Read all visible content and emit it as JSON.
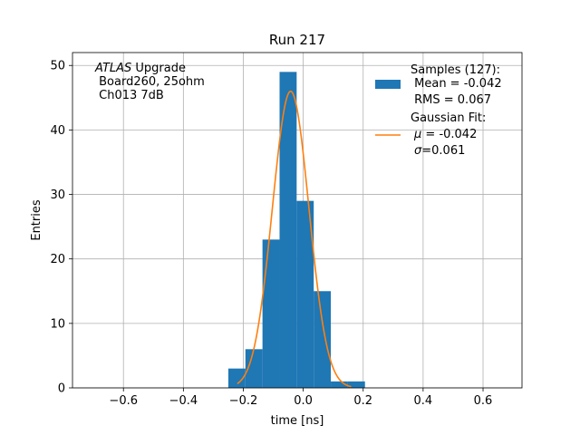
{
  "chart_data": {
    "type": "bar",
    "title": "Run 217",
    "xlabel": "time [ns]",
    "ylabel": "Entries",
    "xlim": [
      -0.77,
      0.73
    ],
    "ylim": [
      0,
      52
    ],
    "grid": true,
    "legend_placement": "top-right",
    "x_ticks": [
      -0.6,
      -0.4,
      -0.2,
      0.0,
      0.2,
      0.4,
      0.6
    ],
    "x_tick_labels": [
      "−0.6",
      "−0.4",
      "−0.2",
      "0.0",
      "0.2",
      "0.4",
      "0.6"
    ],
    "y_ticks": [
      0,
      10,
      20,
      30,
      40,
      50
    ],
    "y_tick_labels": [
      "0",
      "10",
      "20",
      "30",
      "40",
      "50"
    ],
    "histogram": {
      "bin_edges": [
        -0.25,
        -0.193,
        -0.136,
        -0.079,
        -0.022,
        0.035,
        0.092,
        0.149,
        0.206
      ],
      "counts": [
        3,
        6,
        23,
        49,
        29,
        15,
        1,
        1
      ],
      "color": "#1f77b4"
    },
    "gaussian_fit": {
      "mu": -0.042,
      "sigma": 0.061,
      "amplitude": 46,
      "x_range": [
        -0.22,
        0.16
      ],
      "color": "#ff7f0e"
    },
    "annotation": {
      "line1_italic": "ATLAS",
      "line1_rest": " Upgrade",
      "line2": " Board260, 25ohm",
      "line3": " Ch013 7dB"
    },
    "legend": {
      "samples": {
        "line1": "Samples (127):",
        "line2": " Mean = -0.042",
        "line3": " RMS = 0.067"
      },
      "fit": {
        "line1": "Gaussian Fit:",
        "mu_symbol": "μ",
        "mu_value": " = -0.042",
        "sigma_symbol": "σ",
        "sigma_value": "=0.061"
      }
    }
  }
}
